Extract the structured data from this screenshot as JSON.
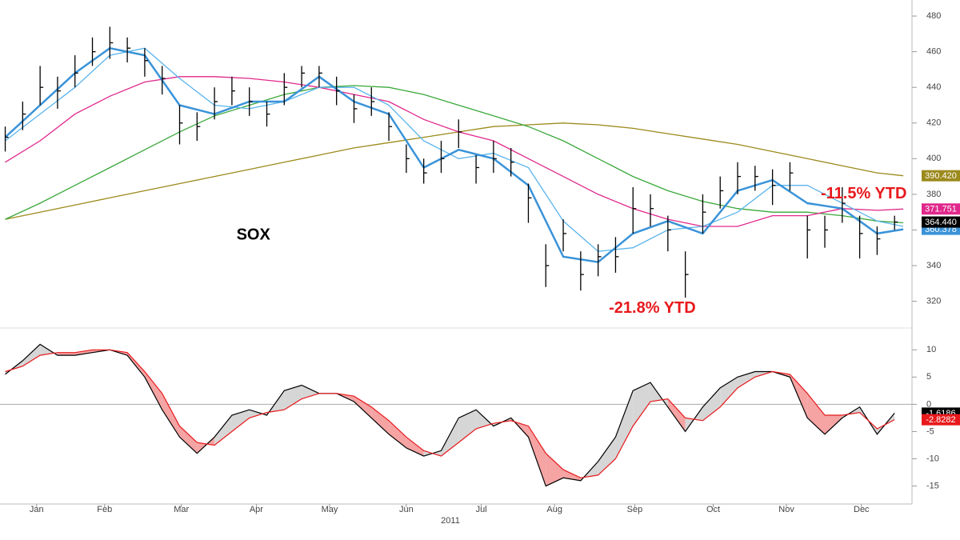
{
  "chart_data": [
    {
      "type": "ohlc",
      "annotations": [
        {
          "text": "SOX",
          "x": 15.2,
          "y": 357,
          "color": "#000000"
        },
        {
          "text": "-21.8% YTD",
          "x": 39.6,
          "y": 316,
          "color": "#e8191c"
        },
        {
          "text": "-11.5% YTD",
          "x": 51.7,
          "y": 380,
          "color": "#e8191c"
        }
      ],
      "xlim": [
        -0.3,
        52
      ],
      "ylim": [
        305,
        489
      ],
      "yticks": [
        320,
        340,
        360,
        380,
        400,
        420,
        440,
        460,
        480
      ],
      "x": [
        0,
        1,
        2,
        3,
        4,
        5,
        6,
        7,
        8,
        9,
        10,
        11,
        12,
        13,
        14,
        15,
        16,
        17,
        18,
        19,
        20,
        21,
        22,
        23,
        24,
        25,
        26,
        27,
        28,
        29,
        30,
        31,
        32,
        33,
        34,
        35,
        36,
        37,
        38,
        39,
        40,
        41,
        42,
        43,
        44,
        45,
        46,
        47,
        48,
        49,
        50,
        51
      ],
      "high": [
        418,
        432,
        452,
        446,
        458,
        468,
        474,
        468,
        462,
        452,
        430,
        426,
        440,
        446,
        440,
        432,
        448,
        452,
        452,
        446,
        436,
        440,
        426,
        408,
        400,
        410,
        422,
        402,
        410,
        406,
        386,
        352,
        366,
        348,
        352,
        356,
        384,
        380,
        368,
        348,
        380,
        390,
        398,
        396,
        394,
        398,
        368,
        368,
        384,
        368,
        362,
        368
      ],
      "low": [
        404,
        416,
        430,
        428,
        440,
        452,
        456,
        454,
        446,
        436,
        408,
        410,
        422,
        430,
        424,
        418,
        430,
        440,
        440,
        430,
        420,
        424,
        410,
        392,
        386,
        392,
        406,
        386,
        392,
        390,
        364,
        328,
        348,
        326,
        334,
        336,
        358,
        362,
        348,
        322,
        358,
        372,
        380,
        382,
        374,
        382,
        344,
        350,
        364,
        344,
        346,
        360
      ],
      "close": [
        412,
        425,
        440,
        438,
        448,
        460,
        465,
        462,
        455,
        445,
        420,
        418,
        432,
        438,
        432,
        425,
        440,
        448,
        448,
        438,
        428,
        432,
        418,
        400,
        392,
        400,
        415,
        395,
        400,
        398,
        378,
        340,
        358,
        335,
        345,
        345,
        372,
        372,
        360,
        335,
        370,
        382,
        390,
        390,
        385,
        392,
        360,
        360,
        375,
        358,
        355,
        364.44
      ],
      "close_label": "364.440",
      "color": "#000000",
      "series": [
        {
          "color": "#9c8a1c",
          "end_label": "390.420",
          "x": [
            0,
            2,
            4,
            6,
            8,
            10,
            12,
            14,
            16,
            18,
            20,
            22,
            24,
            26,
            28,
            30,
            32,
            34,
            36,
            38,
            40,
            42,
            44,
            46,
            48,
            50,
            51.5
          ],
          "values": [
            366,
            370,
            374,
            378,
            382,
            386,
            390,
            394,
            398,
            402,
            406,
            409,
            412,
            415,
            418,
            419,
            420,
            419,
            417,
            414,
            411,
            408,
            404,
            400,
            396,
            392,
            390.42
          ]
        },
        {
          "color": "#3aa83a",
          "x": [
            0,
            2,
            4,
            6,
            8,
            10,
            12,
            14,
            16,
            18,
            20,
            22,
            24,
            26,
            28,
            30,
            32,
            34,
            36,
            38,
            40,
            42,
            44,
            46,
            48,
            50,
            51.5
          ],
          "values": [
            366,
            375,
            385,
            395,
            405,
            415,
            424,
            430,
            436,
            440,
            441,
            440,
            436,
            430,
            424,
            418,
            410,
            400,
            390,
            382,
            376,
            372,
            370,
            370,
            368,
            365,
            364
          ]
        },
        {
          "color": "#e0288c",
          "end_label": "371.751",
          "x": [
            0,
            2,
            4,
            6,
            8,
            10,
            12,
            14,
            16,
            18,
            20,
            22,
            24,
            26,
            28,
            30,
            32,
            34,
            36,
            38,
            40,
            42,
            44,
            46,
            48,
            50,
            51.5
          ],
          "values": [
            398,
            410,
            425,
            435,
            443,
            446,
            446,
            445,
            443,
            440,
            436,
            432,
            422,
            415,
            410,
            400,
            390,
            380,
            372,
            366,
            362,
            362,
            368,
            368,
            372,
            371,
            371.751
          ]
        },
        {
          "color": "#5ab4ec",
          "x": [
            0,
            2,
            4,
            6,
            8,
            10,
            12,
            14,
            16,
            18,
            20,
            22,
            24,
            26,
            28,
            30,
            32,
            34,
            36,
            38,
            40,
            42,
            44,
            46,
            48,
            50,
            51.5
          ],
          "values": [
            410,
            425,
            440,
            458,
            462,
            445,
            430,
            428,
            432,
            440,
            440,
            430,
            410,
            400,
            403,
            395,
            365,
            348,
            350,
            360,
            362,
            370,
            385,
            385,
            375,
            365,
            362
          ]
        },
        {
          "color": "#3a93d8",
          "end_label": "360.378",
          "width": 2.5,
          "x": [
            0,
            2,
            4,
            6,
            8,
            10,
            12,
            14,
            16,
            18,
            20,
            22,
            24,
            26,
            28,
            30,
            32,
            34,
            36,
            38,
            40,
            42,
            44,
            46,
            48,
            50,
            51.5
          ],
          "values": [
            412,
            430,
            448,
            462,
            458,
            430,
            425,
            432,
            432,
            446,
            432,
            425,
            395,
            405,
            400,
            385,
            345,
            342,
            358,
            365,
            358,
            382,
            388,
            375,
            372,
            358,
            360.378
          ]
        }
      ]
    },
    {
      "type": "macd",
      "xlim": [
        -0.3,
        52
      ],
      "ylim": [
        -18,
        14
      ],
      "yticks": [
        10,
        5,
        0,
        -5,
        -10,
        -15
      ],
      "zero_line": true,
      "xticks": [
        {
          "value": 1.8,
          "label": "Jan"
        },
        {
          "value": 5.7,
          "label": "Feb"
        },
        {
          "value": 10.1,
          "label": "Mar"
        },
        {
          "value": 14.4,
          "label": "Apr"
        },
        {
          "value": 18.6,
          "label": "May"
        },
        {
          "value": 23.0,
          "label": "Jun"
        },
        {
          "value": 27.3,
          "label": "Jul"
        },
        {
          "value": 31.5,
          "label": "Aug"
        },
        {
          "value": 36.1,
          "label": "Sep"
        },
        {
          "value": 40.6,
          "label": "Oct"
        },
        {
          "value": 44.8,
          "label": "Nov"
        },
        {
          "value": 49.1,
          "label": "Dec"
        }
      ],
      "x_axis_label": "2011",
      "fill_above": "#d6d6d6",
      "fill_below": "#f5a3a3",
      "x": [
        0,
        1,
        2,
        3,
        4,
        5,
        6,
        7,
        8,
        9,
        10,
        11,
        12,
        13,
        14,
        15,
        16,
        17,
        18,
        19,
        20,
        21,
        22,
        23,
        24,
        25,
        26,
        27,
        28,
        29,
        30,
        31,
        32,
        33,
        34,
        35,
        36,
        37,
        38,
        39,
        40,
        41,
        42,
        43,
        44,
        45,
        46,
        47,
        48,
        49,
        50,
        51
      ],
      "series": [
        {
          "color": "#000000",
          "end_label": "-1.6186",
          "values": [
            5.5,
            8,
            11,
            9,
            9,
            9.5,
            10,
            9,
            5,
            -1,
            -6,
            -9,
            -6,
            -2,
            -1,
            -2,
            2.5,
            3.5,
            2,
            2,
            0.5,
            -2.5,
            -5.5,
            -8,
            -9.5,
            -8.5,
            -2.5,
            -1,
            -4,
            -2.5,
            -6,
            -15,
            -13.5,
            -14,
            -10.5,
            -6,
            2.5,
            4,
            -0.5,
            -5,
            -0.5,
            3,
            5,
            6,
            6,
            5,
            -2.5,
            -5.5,
            -2.5,
            -0.5,
            -5.5,
            -1.6186
          ]
        },
        {
          "color": "#e8191c",
          "end_label": "-2.8282",
          "values": [
            6,
            7,
            9,
            9.5,
            9.5,
            10,
            10,
            9.5,
            6,
            2,
            -4,
            -7,
            -7.5,
            -5,
            -2.5,
            -1.5,
            -1,
            1,
            2,
            2,
            1.5,
            -0.5,
            -3,
            -6,
            -8.5,
            -9.5,
            -7,
            -4.5,
            -3.5,
            -3,
            -4,
            -9,
            -12,
            -13.5,
            -13,
            -10,
            -4,
            0.5,
            1,
            -2.5,
            -3,
            -0.5,
            3,
            5,
            6,
            5.5,
            2,
            -2,
            -2,
            -1.5,
            -4.5,
            -2.8282
          ]
        }
      ]
    }
  ]
}
